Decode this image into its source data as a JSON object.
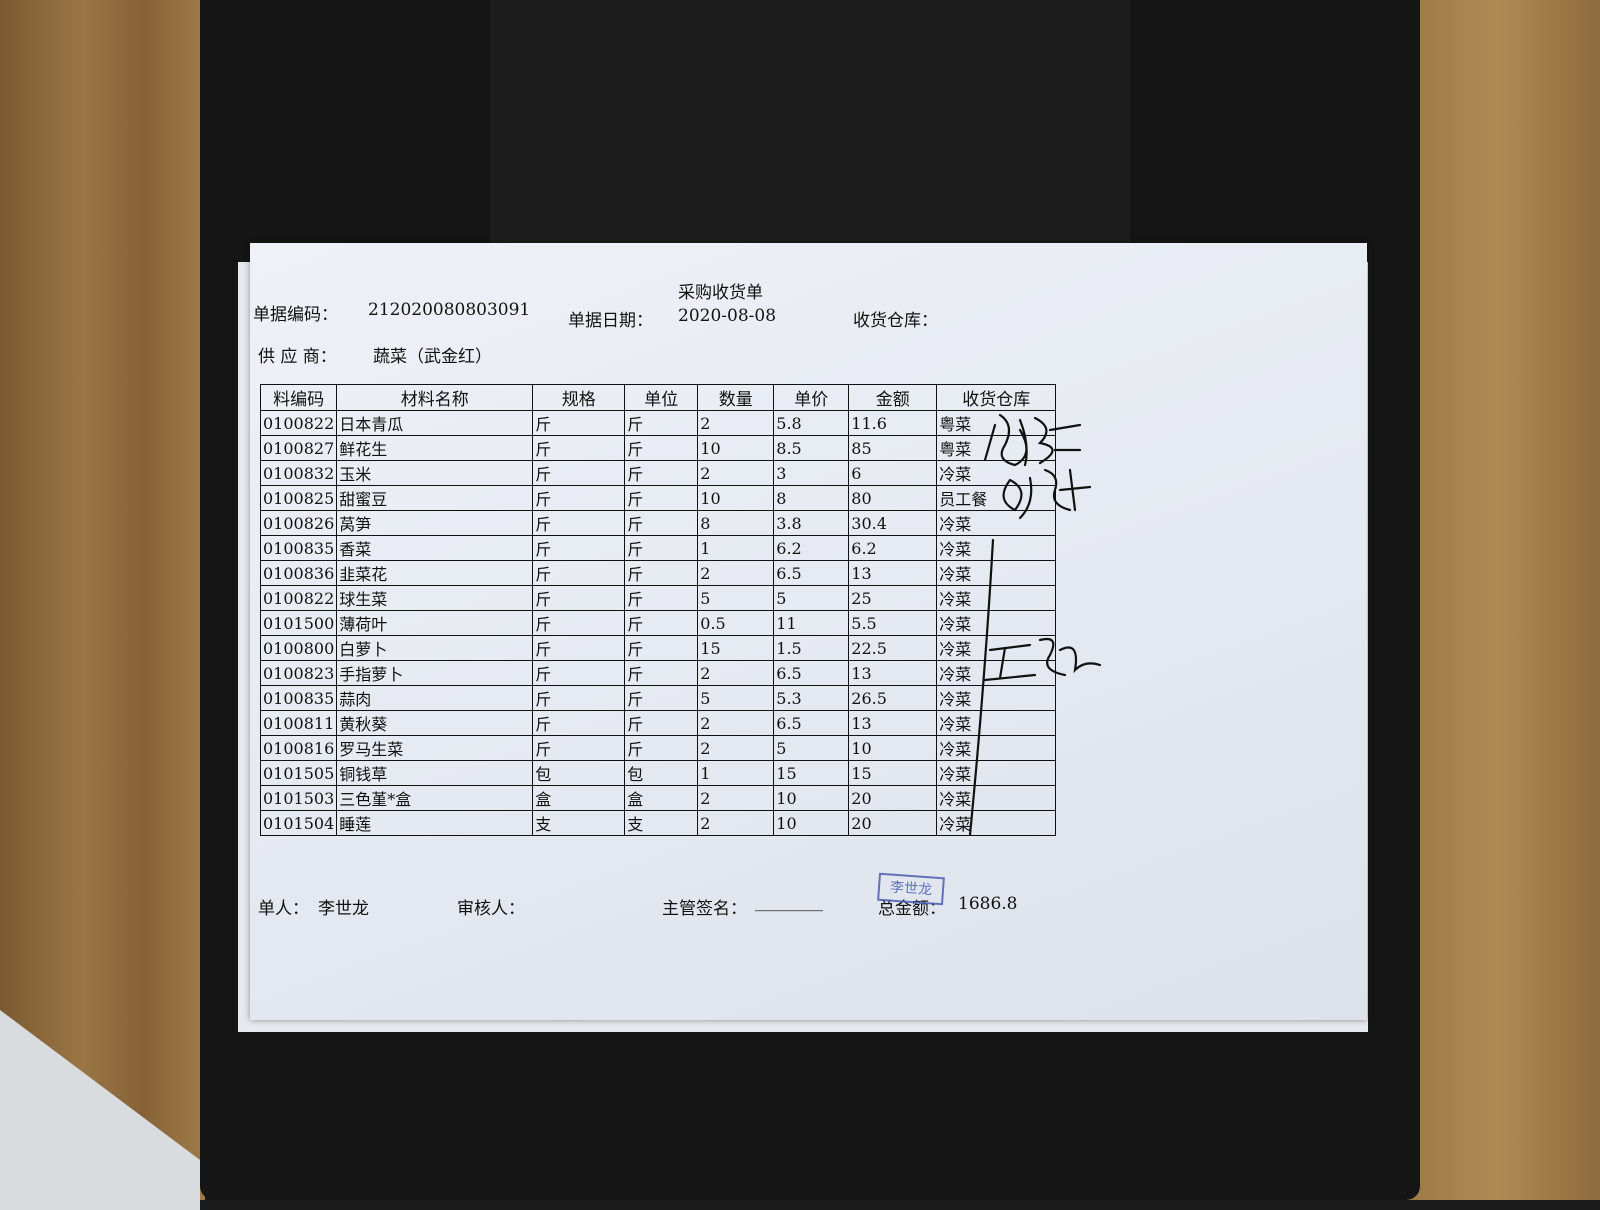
{
  "document": {
    "title": "采购收货单",
    "doc_no_label": "单据编码：",
    "doc_no": "212020080803091",
    "date_label": "单据日期：",
    "date": "2020-08-08",
    "warehouse_label": "收货仓库：",
    "supplier_label": "供 应 商：",
    "supplier": "蔬菜（武金红）"
  },
  "table": {
    "headers": [
      "料编码",
      "材料名称",
      "规格",
      "单位",
      "数量",
      "单价",
      "金额",
      "收货仓库"
    ],
    "rows": [
      [
        "0100822",
        "日本青瓜",
        "斤",
        "斤",
        "2",
        "5.8",
        "11.6",
        "粤菜"
      ],
      [
        "0100827",
        "鲜花生",
        "斤",
        "斤",
        "10",
        "8.5",
        "85",
        "粤菜"
      ],
      [
        "0100832",
        "玉米",
        "斤",
        "斤",
        "2",
        "3",
        "6",
        "冷菜"
      ],
      [
        "0100825",
        "甜蜜豆",
        "斤",
        "斤",
        "10",
        "8",
        "80",
        "员工餐"
      ],
      [
        "0100826",
        "莴笋",
        "斤",
        "斤",
        "8",
        "3.8",
        "30.4",
        "冷菜"
      ],
      [
        "0100835",
        "香菜",
        "斤",
        "斤",
        "1",
        "6.2",
        "6.2",
        "冷菜"
      ],
      [
        "0100836",
        "韭菜花",
        "斤",
        "斤",
        "2",
        "6.5",
        "13",
        "冷菜"
      ],
      [
        "0100822",
        "球生菜",
        "斤",
        "斤",
        "5",
        "5",
        "25",
        "冷菜"
      ],
      [
        "0101500",
        "薄荷叶",
        "斤",
        "斤",
        "0.5",
        "11",
        "5.5",
        "冷菜"
      ],
      [
        "0100800",
        "白萝卜",
        "斤",
        "斤",
        "15",
        "1.5",
        "22.5",
        "冷菜"
      ],
      [
        "0100823",
        "手指萝卜",
        "斤",
        "斤",
        "2",
        "6.5",
        "13",
        "冷菜"
      ],
      [
        "0100835",
        "蒜肉",
        "斤",
        "斤",
        "5",
        "5.3",
        "26.5",
        "冷菜"
      ],
      [
        "0100811",
        "黄秋葵",
        "斤",
        "斤",
        "2",
        "6.5",
        "13",
        "冷菜"
      ],
      [
        "0100816",
        "罗马生菜",
        "斤",
        "斤",
        "2",
        "5",
        "10",
        "冷菜"
      ],
      [
        "0101505",
        "铜钱草",
        "包",
        "包",
        "1",
        "15",
        "15",
        "冷菜"
      ],
      [
        "0101503",
        "三色堇*盒",
        "盒",
        "盒",
        "2",
        "10",
        "20",
        "冷菜"
      ],
      [
        "0101504",
        "睡莲",
        "支",
        "支",
        "2",
        "10",
        "20",
        "冷菜"
      ]
    ]
  },
  "footer": {
    "maker_label": "单人：",
    "maker": "李世龙",
    "reviewer_label": "审核人：",
    "supervisor_label": "主管签名：",
    "supervisor_blank": "________",
    "total_label": "总金额：",
    "total": "1686.8",
    "stamp_text": "李世龙"
  }
}
